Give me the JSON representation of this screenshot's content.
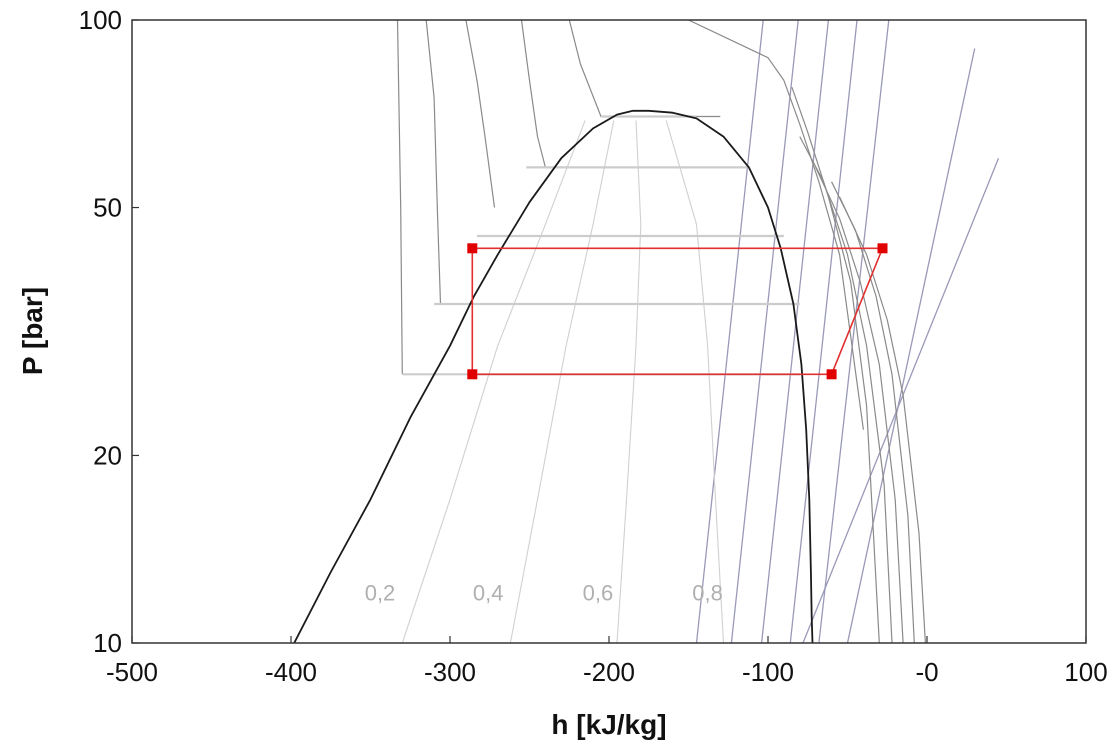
{
  "chart_data": {
    "type": "line",
    "title": "",
    "xlabel": "h [kJ/kg]",
    "ylabel": "P [bar]",
    "xlim": [
      -500,
      100
    ],
    "ylim": [
      10,
      100
    ],
    "y_scale": "log",
    "grid": false,
    "x_ticks": [
      -500,
      -400,
      -300,
      -200,
      -100,
      0,
      100
    ],
    "x_tick_labels": [
      "-500",
      "-400",
      "-300",
      "-200",
      "-100",
      "-0",
      "100"
    ],
    "y_ticks": [
      10,
      20,
      50,
      100
    ],
    "y_tick_labels": [
      "10",
      "20",
      "50",
      "100"
    ],
    "quality_labels": [
      {
        "text": "0,2",
        "x": -344,
        "y": 11.7
      },
      {
        "text": "0,4",
        "x": -276,
        "y": 11.7
      },
      {
        "text": "0,6",
        "x": -207,
        "y": 11.7
      },
      {
        "text": "0,8",
        "x": -138,
        "y": 11.7
      }
    ],
    "colors": {
      "dome": "#1a1a1a",
      "isotherm": "#8a8a8a",
      "isentrope": "#9999b8",
      "quality": "#d0d0d0",
      "isobar": "#cccccc",
      "cycle": "#e03030",
      "cycle_point": "#e00000"
    },
    "saturation_dome": {
      "x": [
        -398,
        -375,
        -350,
        -325,
        -300,
        -285,
        -270,
        -250,
        -230,
        -210,
        -195,
        -185,
        -175,
        -160,
        -145,
        -128,
        -112,
        -100,
        -92,
        -84,
        -79,
        -76,
        -74,
        -73,
        -72.5,
        -72
      ],
      "y": [
        10,
        13,
        17,
        23,
        30,
        36,
        42,
        51,
        60,
        67,
        70.5,
        71.5,
        71.5,
        71,
        69.5,
        65,
        58,
        50,
        43,
        35,
        28,
        22,
        17,
        13,
        11,
        10
      ]
    },
    "cycle": {
      "name": "Cycle",
      "x": [
        -286,
        -28,
        -60,
        -286,
        -286
      ],
      "y": [
        43,
        43,
        27,
        27,
        43
      ]
    },
    "cycle_points": [
      {
        "x": -286,
        "y": 43
      },
      {
        "x": -28,
        "y": 43
      },
      {
        "x": -60,
        "y": 27
      },
      {
        "x": -286,
        "y": 27
      }
    ],
    "isobars": [
      {
        "x": [
          -330,
          -80
        ],
        "y": [
          27,
          27
        ]
      },
      {
        "x": [
          -310,
          -80
        ],
        "y": [
          35,
          35
        ]
      },
      {
        "x": [
          -283,
          -90
        ],
        "y": [
          45,
          45
        ]
      },
      {
        "x": [
          -252,
          -112
        ],
        "y": [
          58,
          58
        ]
      },
      {
        "x": [
          -205,
          -145
        ],
        "y": [
          70,
          70
        ]
      }
    ],
    "quality_lines": [
      {
        "x": [
          -330,
          -300,
          -270,
          -240,
          -215
        ],
        "y": [
          10,
          17,
          30,
          47,
          69
        ]
      },
      {
        "x": [
          -262,
          -245,
          -227,
          -210,
          -197
        ],
        "y": [
          10,
          17,
          30,
          47,
          69
        ]
      },
      {
        "x": [
          -195,
          -189,
          -183,
          -180,
          -183
        ],
        "y": [
          10,
          17,
          30,
          47,
          69
        ]
      },
      {
        "x": [
          -128,
          -133,
          -138,
          -145,
          -164
        ],
        "y": [
          10,
          17,
          30,
          47,
          69
        ]
      }
    ],
    "isotherms": [
      {
        "x": [
          -333,
          -331,
          -330
        ],
        "y": [
          100,
          50,
          27
        ]
      },
      {
        "x": [
          -315,
          -310,
          -308,
          -306
        ],
        "y": [
          100,
          75,
          50,
          35
        ]
      },
      {
        "x": [
          -290,
          -283,
          -278,
          -272
        ],
        "y": [
          100,
          80,
          65,
          50
        ]
      },
      {
        "x": [
          -255,
          -250,
          -245,
          -240
        ],
        "y": [
          100,
          80,
          65,
          58
        ]
      },
      {
        "x": [
          -225,
          -218,
          -205,
          -190,
          -160,
          -130
        ],
        "y": [
          100,
          85,
          70,
          70,
          70,
          70
        ]
      },
      {
        "x": [
          -150,
          -100,
          -90,
          -80,
          -68,
          -55,
          -40
        ],
        "y": [
          100,
          87,
          80,
          68,
          55,
          42,
          22
        ]
      },
      {
        "x": [
          -85,
          -75,
          -62,
          -48,
          -38,
          -30
        ],
        "y": [
          78,
          66,
          52,
          38,
          24,
          10
        ]
      },
      {
        "x": [
          -80,
          -65,
          -50,
          -38,
          -27,
          -22
        ],
        "y": [
          65,
          55,
          42,
          30,
          18,
          10
        ]
      },
      {
        "x": [
          -70,
          -55,
          -42,
          -30,
          -20,
          -15
        ],
        "y": [
          58,
          48,
          38,
          28,
          17,
          10
        ]
      },
      {
        "x": [
          -60,
          -45,
          -32,
          -22,
          -12,
          -8
        ],
        "y": [
          55,
          46,
          36,
          27,
          16,
          10
        ]
      },
      {
        "x": [
          -55,
          -38,
          -25,
          -15,
          -5,
          -1
        ],
        "y": [
          52,
          42,
          33,
          25,
          15,
          10
        ]
      }
    ],
    "isentropes": [
      {
        "x": [
          -145,
          -103
        ],
        "y": [
          10,
          100
        ]
      },
      {
        "x": [
          -123,
          -81
        ],
        "y": [
          10,
          100
        ]
      },
      {
        "x": [
          -104,
          -62
        ],
        "y": [
          10,
          100
        ]
      },
      {
        "x": [
          -86,
          -44
        ],
        "y": [
          10,
          100
        ]
      },
      {
        "x": [
          -68,
          -24
        ],
        "y": [
          10,
          100
        ]
      },
      {
        "x": [
          -50,
          30
        ],
        "y": [
          10,
          90
        ]
      },
      {
        "x": [
          -78,
          45
        ],
        "y": [
          10,
          60
        ]
      }
    ]
  }
}
